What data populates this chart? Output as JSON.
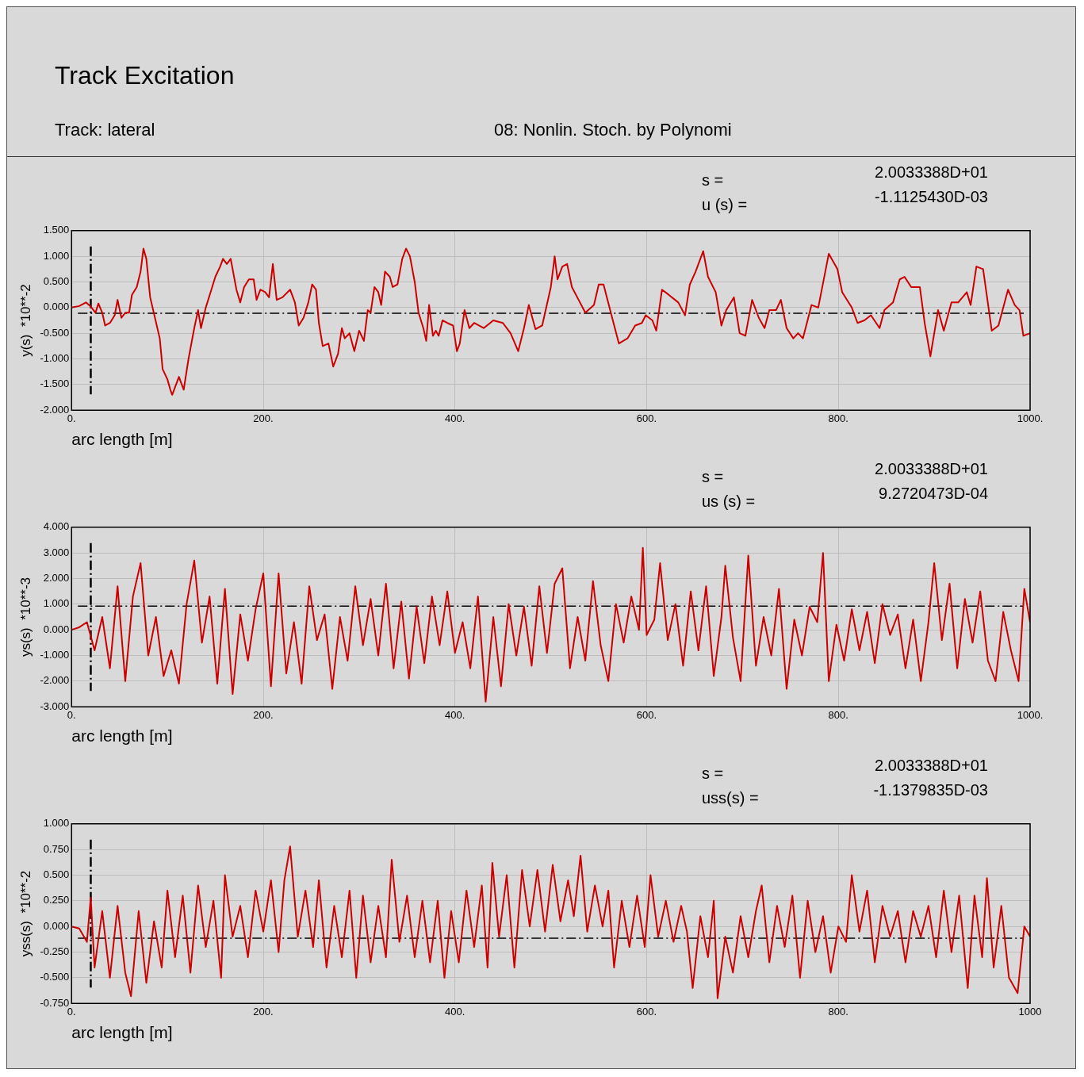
{
  "chart_data": [
    {
      "type": "line",
      "title": "Track Excitation",
      "subtitle": "Track: lateral",
      "annotations": [
        "08: Nonlin. Stoch. by Polynomi",
        "s =",
        "2.0033388D+01",
        "u (s) =",
        "-1.1125430D-03"
      ],
      "xlabel": "arc length [m]",
      "ylabel": "y(s)  *10**-2",
      "xlim": [
        0,
        1000
      ],
      "xticks": [
        {
          "value": 0,
          "label": "0."
        },
        {
          "value": 200,
          "label": "200."
        },
        {
          "value": 400,
          "label": "400."
        },
        {
          "value": 600,
          "label": "600."
        },
        {
          "value": 800,
          "label": "800."
        },
        {
          "value": 1000,
          "label": "1000."
        }
      ],
      "ylim": [
        -2,
        1.5
      ],
      "yticks": [
        {
          "value": -2,
          "label": "-2.000"
        },
        {
          "value": -1.5,
          "label": "-1.500"
        },
        {
          "value": -1,
          "label": "-1.000"
        },
        {
          "value": -0.5,
          "label": "-0.500"
        },
        {
          "value": 0,
          "label": "0.000"
        },
        {
          "value": 0.5,
          "label": "0.500"
        },
        {
          "value": 1,
          "label": "1.000"
        },
        {
          "value": 1.5,
          "label": "1.500"
        }
      ],
      "grid": true,
      "marker": "none",
      "ref_lines": [
        {
          "axis": "x",
          "value": 20.033388,
          "color": "#000000",
          "line_style": "dashed"
        },
        {
          "axis": "y",
          "value": -0.1112543,
          "color": "#000000",
          "line_style": "dashed"
        }
      ],
      "series": [
        {
          "color": "#cc0000",
          "x": [
            0,
            8,
            15,
            20,
            25,
            28,
            32,
            35,
            40,
            45,
            48,
            52,
            56,
            60,
            63,
            68,
            72,
            75,
            78,
            82,
            87,
            92,
            95,
            100,
            103,
            105,
            110,
            112,
            117,
            122,
            128,
            132,
            135,
            140,
            145,
            150,
            155,
            158,
            162,
            166,
            172,
            176,
            180,
            185,
            190,
            193,
            197,
            202,
            206,
            210,
            214,
            220,
            228,
            233,
            237,
            242,
            247,
            251,
            255,
            258,
            262,
            268,
            273,
            278,
            282,
            285,
            290,
            295,
            300,
            305,
            309,
            312,
            316,
            320,
            323,
            327,
            332,
            335,
            340,
            345,
            349,
            353,
            358,
            362,
            367,
            370,
            373,
            377,
            380,
            383,
            387,
            392,
            398,
            402,
            405,
            410,
            415,
            420,
            430,
            440,
            450,
            458,
            466,
            472,
            477,
            484,
            491,
            500,
            504,
            507,
            512,
            517,
            522,
            529,
            536,
            545,
            550,
            555,
            564,
            571,
            580,
            588,
            595,
            599,
            606,
            610,
            616,
            623,
            633,
            640,
            645,
            651,
            659,
            664,
            672,
            678,
            683,
            691,
            697,
            703,
            710,
            717,
            723,
            728,
            735,
            740,
            746,
            753,
            758,
            763,
            772,
            779,
            790,
            799,
            804,
            814,
            820,
            827,
            834,
            843,
            848,
            857,
            864,
            869,
            876,
            885,
            890,
            896,
            904,
            910,
            918,
            925,
            934,
            938,
            944,
            951,
            960,
            967,
            977,
            984,
            989,
            993,
            1000
          ],
          "values": [
            0,
            0.03,
            0.1,
            0.02,
            -0.1,
            0.08,
            -0.1,
            -0.35,
            -0.3,
            -0.15,
            0.15,
            -0.2,
            -0.1,
            -0.1,
            0.25,
            0.4,
            0.7,
            1.15,
            0.95,
            0.2,
            -0.2,
            -0.6,
            -1.2,
            -1.4,
            -1.6,
            -1.7,
            -1.45,
            -1.35,
            -1.6,
            -1,
            -0.4,
            -0.05,
            -0.4,
            0,
            0.3,
            0.6,
            0.8,
            0.95,
            0.85,
            0.95,
            0.35,
            0.1,
            0.4,
            0.55,
            0.55,
            0.15,
            0.35,
            0.3,
            0.2,
            0.85,
            0.15,
            0.2,
            0.35,
            0.1,
            -0.35,
            -0.2,
            0.1,
            0.45,
            0.35,
            -0.3,
            -0.75,
            -0.7,
            -1.15,
            -0.9,
            -0.4,
            -0.6,
            -0.5,
            -0.85,
            -0.45,
            -0.65,
            -0.05,
            -0.1,
            0.4,
            0.3,
            0.05,
            0.7,
            0.6,
            0.4,
            0.45,
            0.95,
            1.15,
            1,
            0.5,
            -0.1,
            -0.4,
            -0.65,
            0.05,
            -0.55,
            -0.45,
            -0.55,
            -0.25,
            -0.3,
            -0.35,
            -0.85,
            -0.7,
            -0.05,
            -0.4,
            -0.3,
            -0.4,
            -0.25,
            -0.3,
            -0.5,
            -0.85,
            -0.4,
            0.05,
            -0.42,
            -0.35,
            0.4,
            1,
            0.55,
            0.8,
            0.85,
            0.4,
            0.15,
            -0.1,
            0.05,
            0.45,
            0.45,
            -0.2,
            -0.7,
            -0.6,
            -0.35,
            -0.3,
            -0.15,
            -0.25,
            -0.45,
            0.35,
            0.25,
            0.1,
            -0.15,
            0.45,
            0.7,
            1.1,
            0.6,
            0.3,
            -0.35,
            -0.05,
            0.2,
            -0.5,
            -0.55,
            0.15,
            -0.2,
            -0.4,
            -0.05,
            -0.05,
            0.15,
            -0.4,
            -0.6,
            -0.5,
            -0.6,
            0.05,
            0,
            1.05,
            0.75,
            0.3,
            0,
            -0.3,
            -0.25,
            -0.15,
            -0.4,
            -0.05,
            0.1,
            0.55,
            0.6,
            0.4,
            0.4,
            -0.3,
            -0.95,
            -0.05,
            -0.45,
            0.1,
            0.1,
            0.3,
            0.05,
            0.8,
            0.75,
            -0.45,
            -0.35,
            0.35,
            0.05,
            -0.05,
            -0.55,
            -0.5
          ]
        }
      ]
    },
    {
      "type": "line",
      "annotations": [
        "s =",
        "2.0033388D+01",
        "us (s) =",
        "9.2720473D-04"
      ],
      "xlabel": "arc length [m]",
      "ylabel": "ys(s)  *10**-3",
      "xlim": [
        0,
        1000
      ],
      "xticks": [
        {
          "value": 0,
          "label": "0."
        },
        {
          "value": 200,
          "label": "200."
        },
        {
          "value": 400,
          "label": "400."
        },
        {
          "value": 600,
          "label": "600."
        },
        {
          "value": 800,
          "label": "800."
        },
        {
          "value": 1000,
          "label": "1000."
        }
      ],
      "ylim": [
        -3,
        4
      ],
      "yticks": [
        {
          "value": -3,
          "label": "-3.000"
        },
        {
          "value": -2,
          "label": "-2.000"
        },
        {
          "value": -1,
          "label": "-1.000"
        },
        {
          "value": 0,
          "label": "0.000"
        },
        {
          "value": 1,
          "label": "1.000"
        },
        {
          "value": 2,
          "label": "2.000"
        },
        {
          "value": 3,
          "label": "3.000"
        },
        {
          "value": 4,
          "label": "4.000"
        }
      ],
      "grid": true,
      "marker": "none",
      "ref_lines": [
        {
          "axis": "x",
          "value": 20.033388,
          "color": "#000000",
          "line_style": "dashed"
        },
        {
          "axis": "y",
          "value": 0.92720473,
          "color": "#000000",
          "line_style": "dashed"
        }
      ],
      "series": [
        {
          "color": "#cc0000",
          "x": [
            0,
            8,
            16,
            24,
            32,
            40,
            48,
            56,
            64,
            72,
            80,
            88,
            96,
            104,
            112,
            120,
            128,
            136,
            144,
            152,
            160,
            168,
            176,
            184,
            192,
            200,
            208,
            216,
            224,
            232,
            240,
            248,
            256,
            264,
            272,
            280,
            288,
            296,
            304,
            312,
            320,
            328,
            336,
            344,
            352,
            360,
            368,
            376,
            384,
            392,
            400,
            408,
            416,
            424,
            432,
            440,
            448,
            456,
            464,
            472,
            480,
            488,
            496,
            504,
            512,
            520,
            528,
            536,
            544,
            552,
            560,
            568,
            576,
            584,
            592,
            596,
            600,
            608,
            614,
            622,
            630,
            638,
            646,
            654,
            662,
            670,
            678,
            682,
            690,
            698,
            706,
            714,
            722,
            730,
            738,
            746,
            754,
            762,
            770,
            778,
            784,
            790,
            798,
            806,
            814,
            822,
            830,
            838,
            846,
            854,
            862,
            870,
            878,
            886,
            894,
            900,
            908,
            916,
            924,
            932,
            940,
            948,
            956,
            964,
            972,
            980,
            988,
            994,
            1000
          ],
          "values": [
            0,
            0.1,
            0.3,
            -0.8,
            0.5,
            -1.5,
            1.7,
            -2,
            1.3,
            2.6,
            -1,
            0.5,
            -1.8,
            -0.8,
            -2.1,
            1,
            2.7,
            -0.5,
            1.3,
            -2.1,
            1.6,
            -2.5,
            0.6,
            -1.2,
            0.8,
            2.2,
            -2.2,
            2.2,
            -1.7,
            0.3,
            -2.1,
            1.7,
            -0.4,
            0.6,
            -2.3,
            0.5,
            -1.2,
            1.7,
            -0.6,
            1.2,
            -1,
            1.8,
            -1.5,
            1.1,
            -1.9,
            0.9,
            -1.3,
            1.3,
            -0.6,
            1.5,
            -0.9,
            0.3,
            -1.5,
            1.3,
            -2.8,
            0.5,
            -2.2,
            1,
            -1,
            0.9,
            -1.4,
            1.7,
            -0.9,
            1.8,
            2.4,
            -1.5,
            0.5,
            -1.2,
            1.9,
            -0.6,
            -2,
            1,
            -0.5,
            1.3,
            0,
            3.2,
            -0.2,
            0.4,
            2.6,
            -0.4,
            1,
            -1.4,
            1.5,
            -0.8,
            1.7,
            -1.8,
            0.5,
            2.5,
            -0.3,
            -2,
            2.9,
            -1.4,
            0.5,
            -1,
            1.6,
            -2.3,
            0.4,
            -1,
            0.9,
            0.3,
            3,
            -2,
            0.2,
            -1.2,
            0.8,
            -0.8,
            0.7,
            -1.3,
            1,
            -0.2,
            0.6,
            -1.5,
            0.4,
            -2,
            0.3,
            2.6,
            -0.4,
            1.8,
            -1.5,
            1.2,
            -0.5,
            1.5,
            -1.2,
            -2,
            0.7,
            -0.8,
            -2,
            1.6,
            0.3
          ]
        }
      ]
    },
    {
      "type": "line",
      "annotations": [
        "s =",
        "2.0033388D+01",
        "uss(s) =",
        "-1.1379835D-03"
      ],
      "xlabel": "arc length [m]",
      "ylabel": "yss(s)  *10**-2",
      "xlim": [
        0,
        1000
      ],
      "xticks": [
        {
          "value": 0,
          "label": "0."
        },
        {
          "value": 200,
          "label": "200."
        },
        {
          "value": 400,
          "label": "400."
        },
        {
          "value": 600,
          "label": "600."
        },
        {
          "value": 800,
          "label": "800."
        },
        1000
      ],
      "ylim": [
        -0.75,
        1
      ],
      "yticks": [
        {
          "value": -0.75,
          "label": "-0.750"
        },
        {
          "value": -0.5,
          "label": "-0.500"
        },
        {
          "value": -0.25,
          "label": "-0.250"
        },
        {
          "value": 0,
          "label": "0.000"
        },
        {
          "value": 0.25,
          "label": "0.250"
        },
        {
          "value": 0.5,
          "label": "0.500"
        },
        {
          "value": 0.75,
          "label": "0.750"
        },
        {
          "value": 1,
          "label": "1.000"
        }
      ],
      "grid": true,
      "marker": "none",
      "ref_lines": [
        {
          "axis": "x",
          "value": 20.033388,
          "color": "#000000",
          "line_style": "dashed"
        },
        {
          "axis": "y",
          "value": -0.11379835,
          "color": "#000000",
          "line_style": "dashed"
        }
      ],
      "series": [
        {
          "color": "#cc0000",
          "x": [
            0,
            8,
            16,
            20,
            24,
            32,
            40,
            48,
            56,
            62,
            70,
            78,
            86,
            94,
            100,
            108,
            116,
            124,
            132,
            140,
            148,
            156,
            160,
            168,
            176,
            184,
            192,
            200,
            208,
            216,
            222,
            228,
            236,
            244,
            252,
            258,
            266,
            274,
            282,
            290,
            297,
            304,
            312,
            320,
            328,
            334,
            342,
            350,
            358,
            366,
            374,
            382,
            389,
            396,
            404,
            412,
            420,
            428,
            434,
            439,
            446,
            454,
            462,
            470,
            478,
            486,
            494,
            502,
            510,
            518,
            524,
            531,
            538,
            546,
            554,
            560,
            566,
            574,
            582,
            590,
            598,
            604,
            612,
            620,
            628,
            636,
            642,
            648,
            656,
            664,
            670,
            674,
            682,
            690,
            698,
            706,
            714,
            720,
            728,
            736,
            744,
            752,
            760,
            768,
            776,
            784,
            792,
            800,
            808,
            814,
            822,
            830,
            838,
            846,
            854,
            862,
            870,
            878,
            886,
            894,
            902,
            910,
            918,
            926,
            935,
            942,
            950,
            955,
            962,
            970,
            978,
            987,
            994,
            1000
          ],
          "values": [
            0,
            -0.02,
            -0.15,
            0.28,
            -0.4,
            0.15,
            -0.5,
            0.2,
            -0.45,
            -0.68,
            0.15,
            -0.55,
            0.05,
            -0.4,
            0.35,
            -0.3,
            0.3,
            -0.45,
            0.4,
            -0.2,
            0.25,
            -0.5,
            0.5,
            -0.1,
            0.2,
            -0.3,
            0.35,
            -0.05,
            0.45,
            -0.25,
            0.45,
            0.78,
            -0.1,
            0.35,
            -0.2,
            0.45,
            -0.4,
            0.2,
            -0.3,
            0.35,
            -0.5,
            0.3,
            -0.35,
            0.2,
            -0.3,
            0.65,
            -0.15,
            0.3,
            -0.3,
            0.25,
            -0.35,
            0.25,
            -0.5,
            0.15,
            -0.35,
            0.35,
            -0.2,
            0.4,
            -0.4,
            0.62,
            -0.1,
            0.5,
            -0.4,
            0.55,
            0,
            0.55,
            -0.05,
            0.6,
            0.05,
            0.45,
            0.1,
            0.69,
            -0.05,
            0.4,
            0,
            0.35,
            -0.4,
            0.25,
            -0.2,
            0.3,
            -0.2,
            0.5,
            -0.1,
            0.25,
            -0.15,
            0.2,
            -0.05,
            -0.6,
            0.1,
            -0.3,
            0.25,
            -0.7,
            -0.1,
            -0.45,
            0.1,
            -0.3,
            0.15,
            0.4,
            -0.35,
            0.2,
            -0.2,
            0.3,
            -0.5,
            0.25,
            -0.25,
            0.1,
            -0.45,
            0,
            -0.15,
            0.5,
            -0.05,
            0.35,
            -0.35,
            0.2,
            -0.1,
            0.15,
            -0.35,
            0.15,
            -0.1,
            0.2,
            -0.3,
            0.35,
            -0.25,
            0.3,
            -0.6,
            0.3,
            -0.3,
            0.47,
            -0.4,
            0.2,
            -0.5,
            -0.65,
            0,
            -0.1
          ]
        }
      ]
    }
  ]
}
